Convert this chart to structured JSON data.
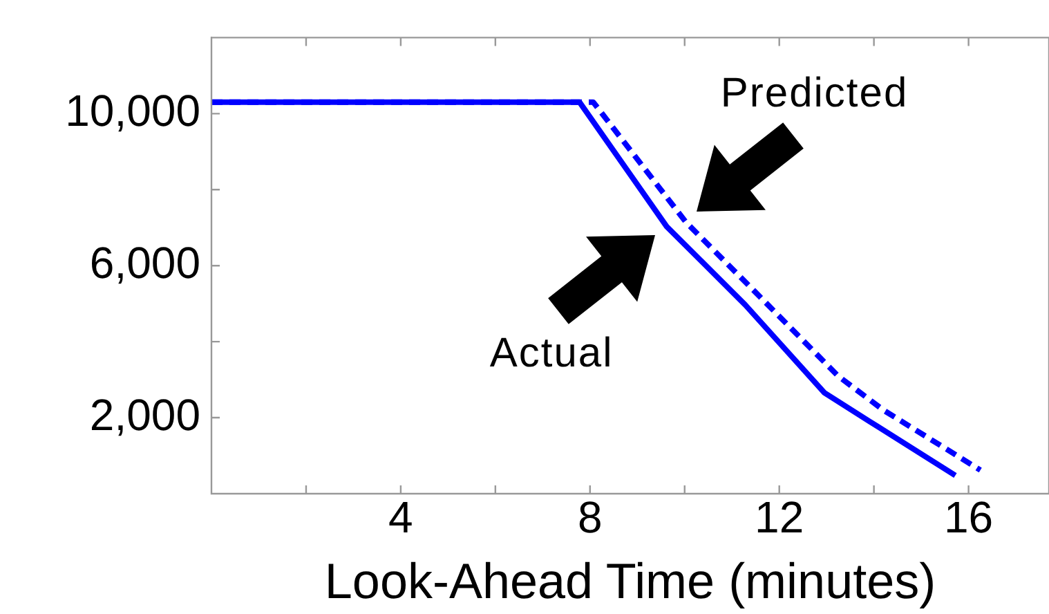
{
  "chart_data": {
    "type": "line",
    "xlabel": "Look-Ahead Time (minutes)",
    "xlim": [
      0,
      17.7
    ],
    "ylim": [
      0,
      12000
    ],
    "xticks": [
      {
        "value": 2,
        "label": null
      },
      4,
      {
        "value": 6,
        "label": null
      },
      8,
      {
        "value": 10,
        "label": null
      },
      12,
      {
        "value": 14,
        "label": null
      },
      16
    ],
    "yticks": [
      {
        "value": 2000,
        "label": "2,000"
      },
      {
        "value": 4000,
        "label": null
      },
      {
        "value": 6000,
        "label": "6,000"
      },
      {
        "value": 8000,
        "label": null
      },
      {
        "value": 10000,
        "label": "10,000"
      }
    ],
    "grid": false,
    "legend": false,
    "marker": "none",
    "series": [
      {
        "name": "Actual",
        "color": "#0000ff",
        "line_style": "solid",
        "x": [
          0,
          7.78,
          9.62,
          11.28,
          12.95,
          13.91,
          15.72
        ],
        "values": [
          10300,
          10300,
          7030,
          4970,
          2660,
          1900,
          480
        ]
      },
      {
        "name": "Predicted",
        "color": "#0000ff",
        "line_style": "dashed",
        "x": [
          0,
          8.07,
          10.03,
          11.49,
          13.24,
          14.2,
          16.25
        ],
        "values": [
          10300,
          10300,
          7140,
          5310,
          3100,
          2200,
          620
        ]
      }
    ]
  }
}
